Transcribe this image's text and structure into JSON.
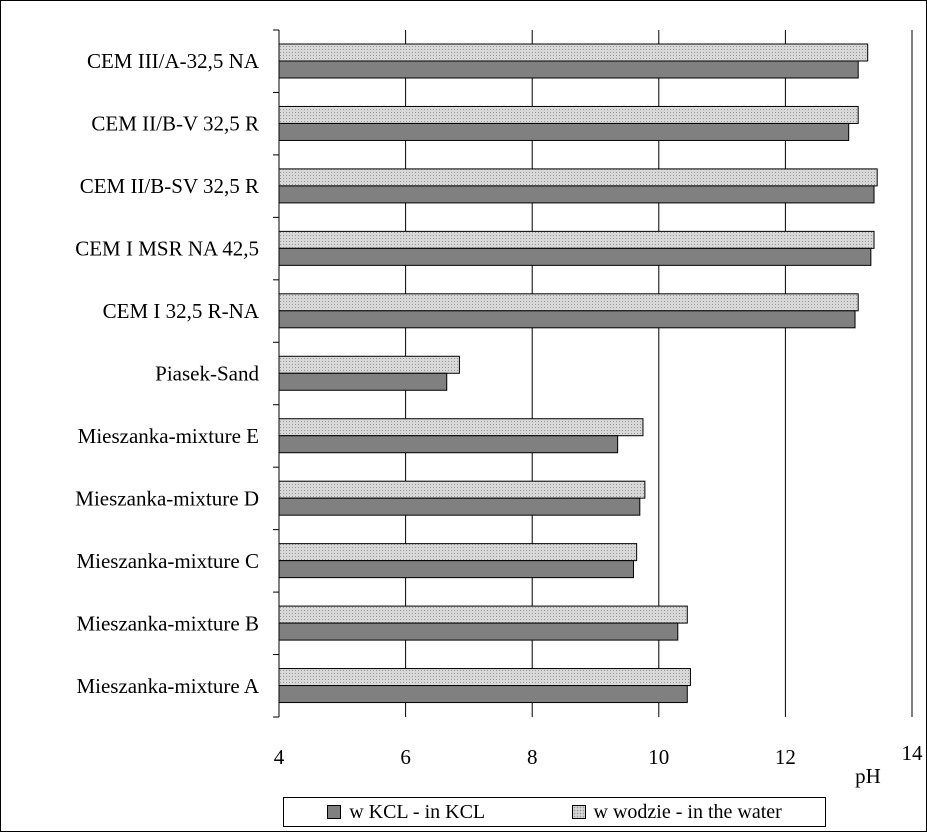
{
  "chart_data": {
    "type": "bar",
    "orientation": "horizontal",
    "categories": [
      "CEM III/A-32,5 NA",
      "CEM II/B-V 32,5 R",
      "CEM II/B-SV 32,5 R",
      "CEM I MSR NA 42,5",
      "CEM I 32,5 R-NA",
      "Piasek-Sand",
      "Mieszanka-mixture E",
      "Mieszanka-mixture D",
      "Mieszanka-mixture C",
      "Mieszanka-mixture B",
      "Mieszanka-mixture A"
    ],
    "series": [
      {
        "name": "w KCL - in KCL",
        "color": "#808080",
        "values": [
          13.15,
          13.0,
          13.4,
          13.35,
          13.1,
          6.65,
          9.35,
          9.7,
          9.6,
          10.3,
          10.45
        ]
      },
      {
        "name": "w wodzie - in the water",
        "color": "#d8d8d8",
        "values": [
          13.3,
          13.15,
          13.45,
          13.4,
          13.15,
          6.85,
          9.75,
          9.78,
          9.65,
          10.45,
          10.5
        ]
      }
    ],
    "xlim": [
      4,
      14
    ],
    "xticks": [
      4,
      6,
      8,
      10,
      12,
      14
    ],
    "xtick_labels": [
      "4",
      "6",
      "8",
      "10",
      "12",
      "14"
    ],
    "xlabel": "pH",
    "grid": "vertical",
    "legend": "bottom"
  }
}
